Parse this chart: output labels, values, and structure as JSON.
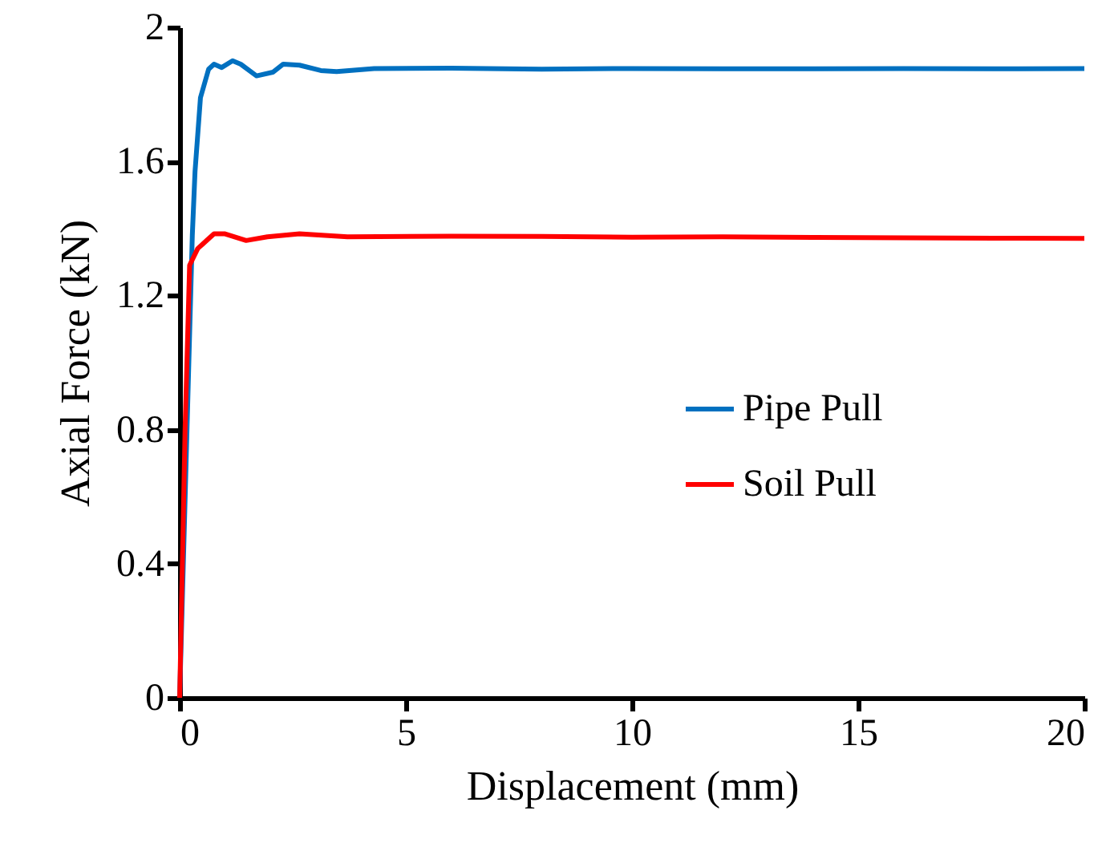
{
  "chart_data": {
    "type": "line",
    "xlabel": "Displacement (mm)",
    "ylabel": "Axial Force (kN)",
    "xlim": [
      0,
      20
    ],
    "xticks": [
      0,
      5,
      10,
      15,
      20
    ],
    "ylim": [
      0,
      2
    ],
    "yticks": [
      0,
      0.4,
      0.8,
      1.2,
      1.6,
      2
    ],
    "grid": false,
    "legend": "right",
    "marker": "none",
    "line_style": "solid",
    "series": [
      {
        "name": "Pipe Pull",
        "color": "#0070c0",
        "x": [
          0,
          0.28,
          0.34,
          0.46,
          0.64,
          0.76,
          0.93,
          1.17,
          1.35,
          1.7,
          2.06,
          2.29,
          2.65,
          3.12,
          3.47,
          4.3,
          6,
          8,
          10,
          12,
          14,
          16,
          18,
          20
        ],
        "values": [
          0,
          1.38,
          1.57,
          1.79,
          1.875,
          1.89,
          1.88,
          1.9,
          1.89,
          1.855,
          1.866,
          1.89,
          1.887,
          1.871,
          1.868,
          1.877,
          1.878,
          1.875,
          1.877,
          1.876,
          1.876,
          1.877,
          1.876,
          1.877
        ]
      },
      {
        "name": "Soil Pull",
        "color": "#ff0000",
        "x": [
          0,
          0.12,
          0.22,
          0.4,
          0.76,
          0.99,
          1.47,
          1.94,
          2.65,
          3.71,
          6,
          8,
          10,
          12,
          14,
          16,
          18,
          20
        ],
        "values": [
          0,
          0.8,
          1.29,
          1.34,
          1.384,
          1.384,
          1.364,
          1.375,
          1.384,
          1.375,
          1.377,
          1.376,
          1.374,
          1.375,
          1.373,
          1.372,
          1.371,
          1.37
        ]
      }
    ]
  }
}
